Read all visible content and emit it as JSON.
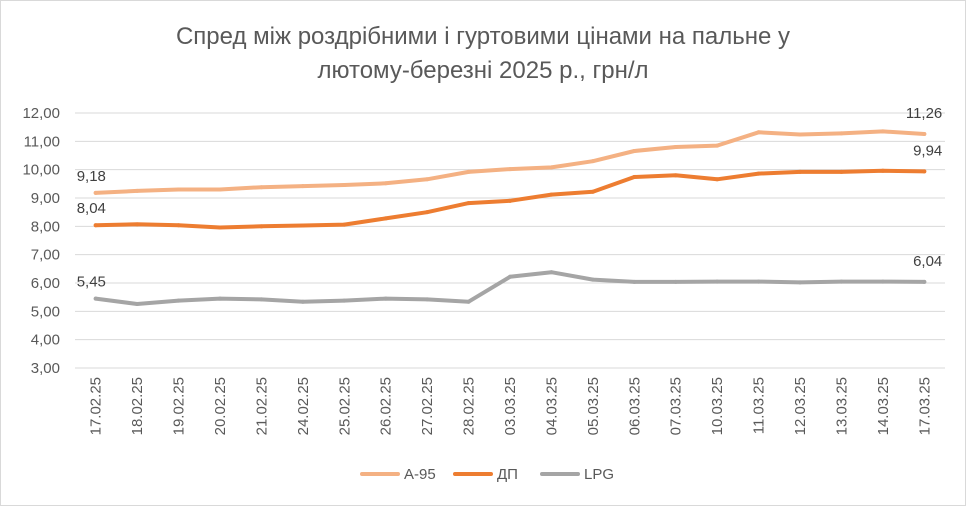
{
  "chart_data": {
    "type": "line",
    "title_line1": "Спред між роздрібними і гуртовими цінами на пальне у",
    "title_line2": "лютому-березні 2025 р., грн/л",
    "categories": [
      "17.02.25",
      "18.02.25",
      "19.02.25",
      "20.02.25",
      "21.02.25",
      "24.02.25",
      "25.02.25",
      "26.02.25",
      "27.02.25",
      "28.02.25",
      "03.03.25",
      "04.03.25",
      "05.03.25",
      "06.03.25",
      "07.03.25",
      "10.03.25",
      "11.03.25",
      "12.03.25",
      "13.03.25",
      "14.03.25",
      "17.03.25"
    ],
    "y_ticks": [
      "3,00",
      "4,00",
      "5,00",
      "6,00",
      "7,00",
      "8,00",
      "9,00",
      "10,00",
      "11,00",
      "12,00"
    ],
    "ylim": [
      3,
      12
    ],
    "grid": true,
    "legend_position": "bottom",
    "series": [
      {
        "name": "А-95",
        "color": "#f4b183",
        "values": [
          9.18,
          9.25,
          9.3,
          9.3,
          9.38,
          9.42,
          9.46,
          9.52,
          9.66,
          9.92,
          10.02,
          10.08,
          10.3,
          10.66,
          10.8,
          10.85,
          11.32,
          11.24,
          11.28,
          11.35,
          11.26
        ],
        "start_label": "9,18",
        "end_label": "11,26"
      },
      {
        "name": "ДП",
        "color": "#ed7d31",
        "values": [
          8.04,
          8.07,
          8.04,
          7.96,
          8.0,
          8.03,
          8.06,
          8.28,
          8.5,
          8.82,
          8.9,
          9.12,
          9.22,
          9.74,
          9.8,
          9.66,
          9.86,
          9.92,
          9.92,
          9.96,
          9.94
        ],
        "start_label": "8,04",
        "end_label": "9,94"
      },
      {
        "name": "LPG",
        "color": "#a5a5a5",
        "values": [
          5.45,
          5.26,
          5.38,
          5.45,
          5.42,
          5.34,
          5.38,
          5.45,
          5.42,
          5.34,
          6.22,
          6.38,
          6.12,
          6.04,
          6.04,
          6.05,
          6.05,
          6.02,
          6.05,
          6.05,
          6.04
        ],
        "start_label": "5,45",
        "end_label": "6,04"
      }
    ]
  }
}
